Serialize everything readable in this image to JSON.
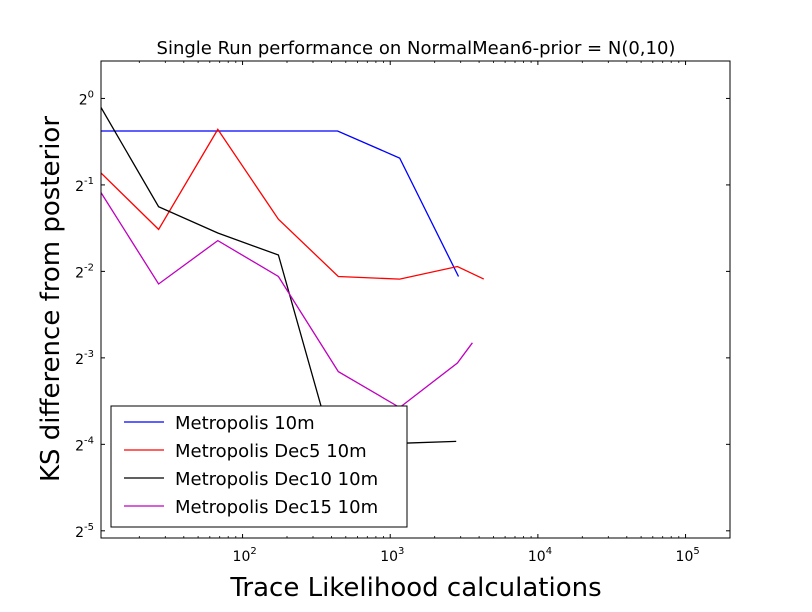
{
  "chart_data": {
    "type": "line",
    "title": "Single Run performance on NormalMean6-prior = N(0,10)",
    "xlabel": "Trace Likelihood calculations",
    "ylabel": "KS difference from posterior",
    "xscale": "log10",
    "yscale": "log2",
    "xlim": [
      11,
      200000
    ],
    "ylim": [
      0.0295,
      1.35
    ],
    "x_ticks": [
      {
        "value": 100,
        "base": "10",
        "exp": "2"
      },
      {
        "value": 1000,
        "base": "10",
        "exp": "3"
      },
      {
        "value": 10000,
        "base": "10",
        "exp": "4"
      },
      {
        "value": 100000,
        "base": "10",
        "exp": "5"
      }
    ],
    "y_ticks": [
      {
        "value": 1,
        "base": "2",
        "exp": "0"
      },
      {
        "value": 0.5,
        "base": "2",
        "exp": "-1"
      },
      {
        "value": 0.25,
        "base": "2",
        "exp": "-2"
      },
      {
        "value": 0.125,
        "base": "2",
        "exp": "-3"
      },
      {
        "value": 0.0625,
        "base": "2",
        "exp": "-4"
      },
      {
        "value": 0.03125,
        "base": "2",
        "exp": "-5"
      }
    ],
    "legend_position": "lower-left",
    "series": [
      {
        "name": "Metropolis 10m",
        "color": "#0000ff",
        "x": [
          11,
          440,
          1160,
          2900
        ],
        "y": [
          0.77,
          0.77,
          0.62,
          0.24
        ]
      },
      {
        "name": "Metropolis Dec5 10m",
        "color": "#ff0000",
        "x": [
          11,
          27,
          68,
          175,
          445,
          1160,
          2850,
          4300
        ],
        "y": [
          0.55,
          0.35,
          0.78,
          0.38,
          0.24,
          0.235,
          0.26,
          0.235
        ]
      },
      {
        "name": "Metropolis Dec10 10m",
        "color": "#000000",
        "x": [
          11,
          27,
          68,
          175,
          445,
          1160,
          2800
        ],
        "y": [
          0.93,
          0.42,
          0.34,
          0.285,
          0.052,
          0.063,
          0.064
        ]
      },
      {
        "name": "Metropolis Dec15 10m",
        "color": "#bf00bf",
        "x": [
          11,
          27,
          68,
          175,
          445,
          1160,
          2850,
          3600
        ],
        "y": [
          0.47,
          0.226,
          0.32,
          0.24,
          0.112,
          0.084,
          0.12,
          0.141
        ]
      }
    ]
  }
}
